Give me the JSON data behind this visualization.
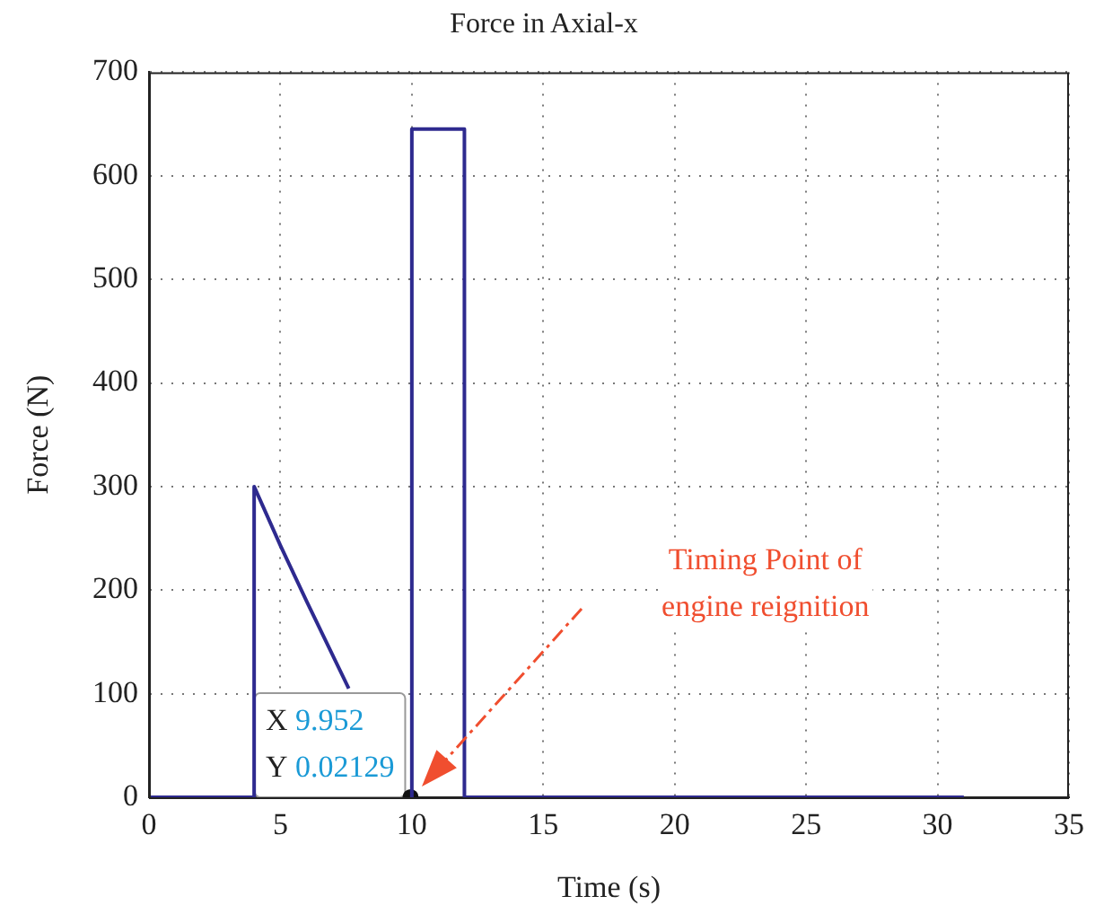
{
  "chart_data": {
    "type": "line",
    "title": "Force in Axial-x",
    "xlabel": "Time (s)",
    "ylabel": "Force (N)",
    "x": [
      0,
      4,
      4,
      5,
      6,
      7.6,
      8.8,
      9.952,
      10,
      10,
      12,
      12,
      31
    ],
    "series": [
      {
        "color": "#2e2a8f",
        "values": [
          0,
          0,
          300,
          243,
          189,
          105,
          null,
          0,
          0,
          645,
          645,
          0,
          0
        ]
      },
      {
        "type": "scatter",
        "color": "#111111",
        "marker": "circle",
        "x": [
          9.952
        ],
        "values": [
          0.02129
        ]
      }
    ],
    "xlim": [
      0,
      35
    ],
    "xticks": [
      0,
      5,
      10,
      15,
      20,
      25,
      30,
      35
    ],
    "ylim": [
      0,
      700
    ],
    "yticks": [
      0,
      100,
      200,
      300,
      400,
      500,
      600,
      700
    ],
    "grid": true,
    "legend": false,
    "marker": "none",
    "line_style": "solid",
    "annotations": [
      "X 9.952\nY 0.02129",
      "Timing Point of\nengine reignition"
    ]
  }
}
